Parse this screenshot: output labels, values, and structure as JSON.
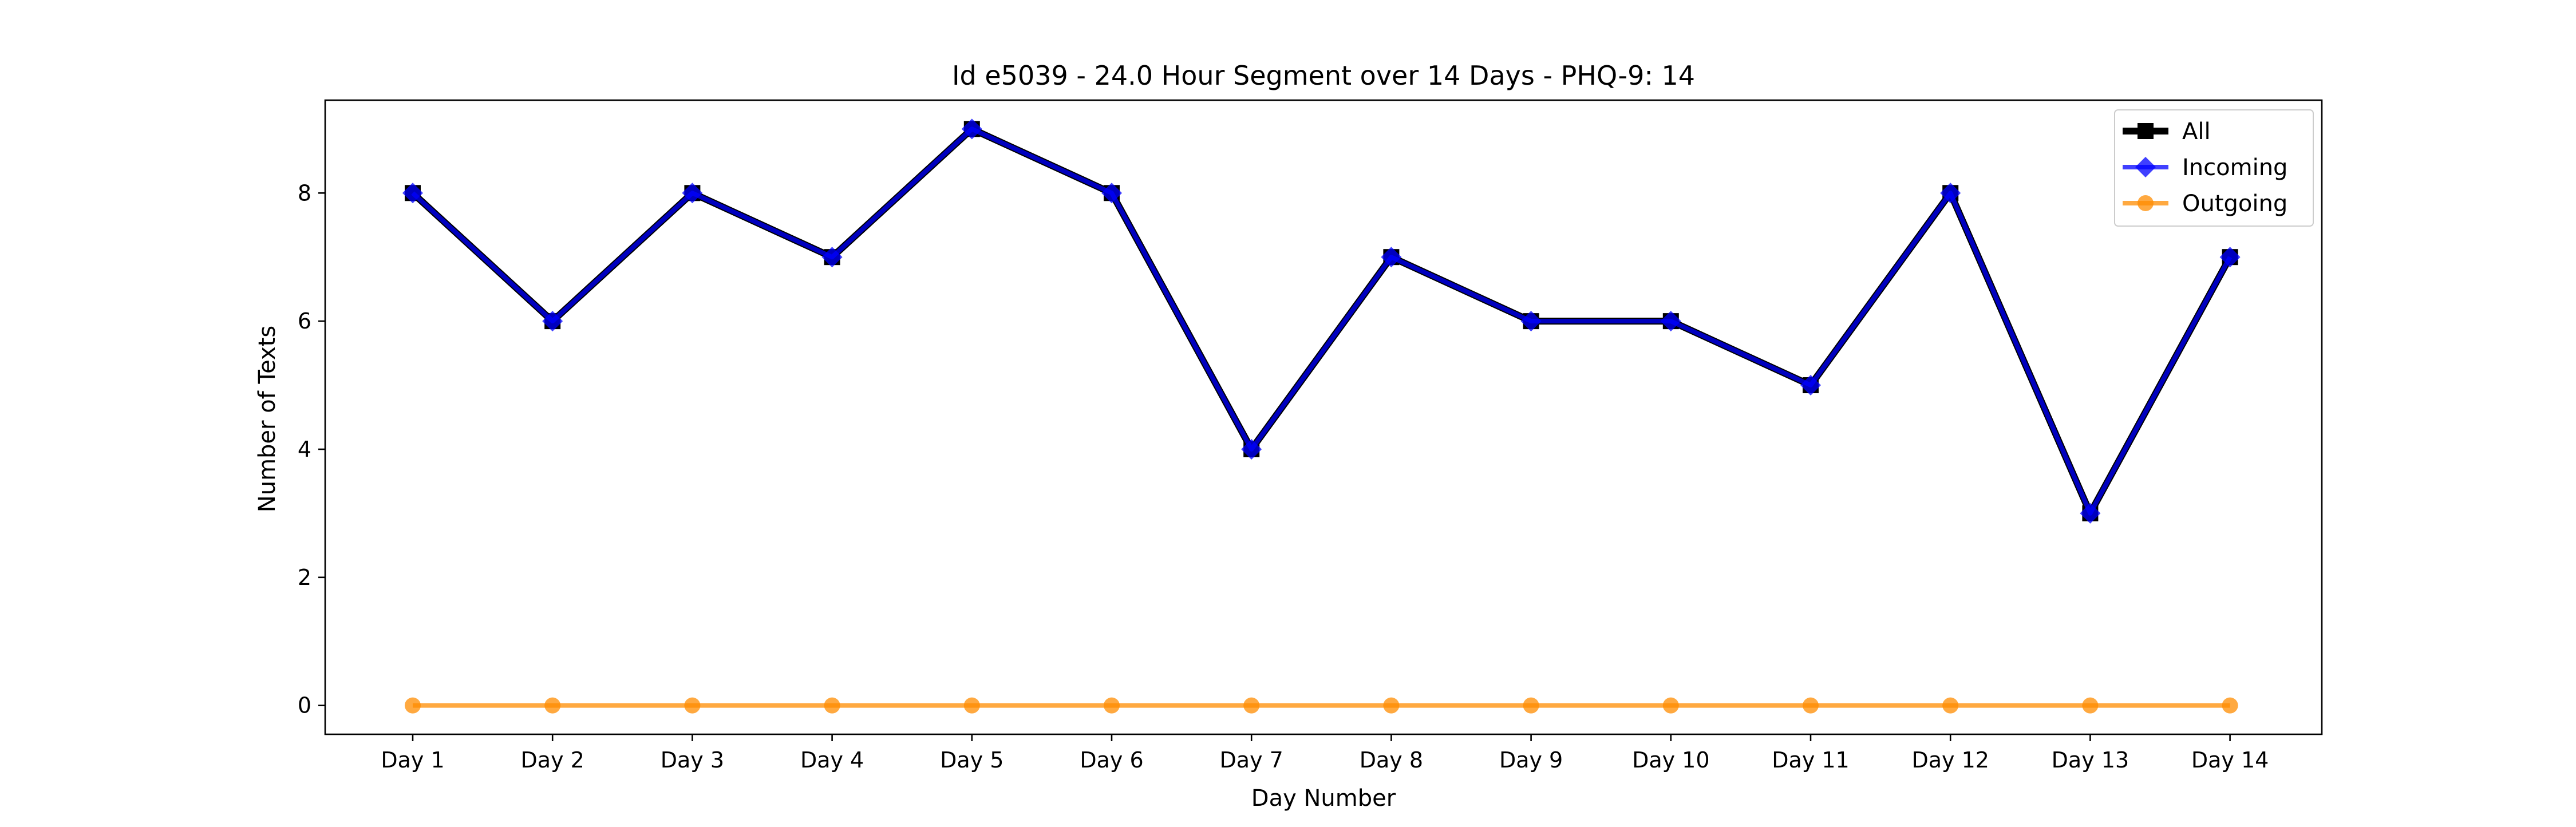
{
  "chart_data": {
    "type": "line",
    "title": "Id e5039 - 24.0 Hour Segment over 14 Days - PHQ-9: 14",
    "xlabel": "Day Number",
    "ylabel": "Number of Texts",
    "categories": [
      "Day 1",
      "Day 2",
      "Day 3",
      "Day 4",
      "Day 5",
      "Day 6",
      "Day 7",
      "Day 8",
      "Day 9",
      "Day 10",
      "Day 11",
      "Day 12",
      "Day 13",
      "Day 14"
    ],
    "yticks": [
      0,
      2,
      4,
      6,
      8
    ],
    "ylim": [
      -0.45,
      9.45
    ],
    "grid": false,
    "legend_position": "top-right",
    "series": [
      {
        "name": "All",
        "values": [
          8,
          6,
          8,
          7,
          9,
          8,
          4,
          7,
          6,
          6,
          5,
          8,
          3,
          7
        ],
        "color": "#000000",
        "marker": "square"
      },
      {
        "name": "Incoming",
        "values": [
          8,
          6,
          8,
          7,
          9,
          8,
          4,
          7,
          6,
          6,
          5,
          8,
          3,
          7
        ],
        "color": "#0000ff",
        "marker": "diamond"
      },
      {
        "name": "Outgoing",
        "values": [
          0,
          0,
          0,
          0,
          0,
          0,
          0,
          0,
          0,
          0,
          0,
          0,
          0,
          0
        ],
        "color": "#ff8c00",
        "marker": "circle"
      }
    ]
  }
}
